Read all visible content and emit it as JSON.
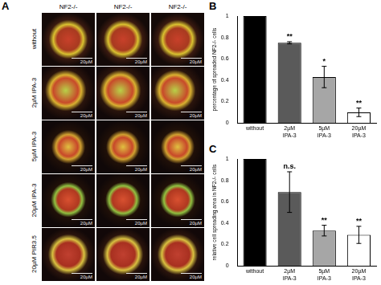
{
  "figure": {
    "panel_labels": [
      "A",
      "B",
      "C"
    ],
    "images": {
      "column_headers": [
        "NF2-/-",
        "NF2-/-",
        "NF2-/-"
      ],
      "row_labels": [
        "without",
        "2µM IPA-3",
        "5µM IPA-3",
        "20µM IPA-3",
        "20µM PIR3.5"
      ],
      "scale_bar_label": "20µM"
    }
  },
  "chart_data": [
    {
      "type": "bar",
      "panel": "B",
      "y_label": "percentage of spreaded NF2-/- cells",
      "categories": [
        "without",
        "2µM IPA-3",
        "5µM IPA-3",
        "20µM IPA-3"
      ],
      "values": [
        1,
        0.75,
        0.43,
        0.1
      ],
      "errors": [
        0,
        0.01,
        0.1,
        0.04
      ],
      "colors": [
        "#000000",
        "#5a5a5a",
        "#a6a6a6",
        "#ffffff"
      ],
      "annotations": [
        {
          "category": "2µM IPA-3",
          "text": "**"
        },
        {
          "category": "5µM IPA-3",
          "text": "*"
        },
        {
          "category": "20µM IPA-3",
          "text": "**"
        }
      ],
      "ylim": [
        0,
        1
      ],
      "yticks": [
        0,
        0.2,
        0.4,
        0.6,
        0.8,
        1
      ],
      "grid": false
    },
    {
      "type": "bar",
      "panel": "C",
      "y_label": "relative cell spreading area in NF2-/- cells",
      "categories": [
        "without",
        "2µM IPA-3",
        "5µM IPA-3",
        "20µM IPA-3"
      ],
      "values": [
        1,
        0.69,
        0.33,
        0.29
      ],
      "errors": [
        0,
        0.19,
        0.05,
        0.08
      ],
      "colors": [
        "#000000",
        "#5a5a5a",
        "#a6a6a6",
        "#ffffff"
      ],
      "annotations": [
        {
          "category": "2µM IPA-3",
          "text": "n.s."
        },
        {
          "category": "5µM IPA-3",
          "text": "**"
        },
        {
          "category": "20µM IPA-3",
          "text": "**"
        }
      ],
      "ylim": [
        0,
        1
      ],
      "yticks": [
        0,
        0.2,
        0.4,
        0.6,
        0.8,
        1
      ],
      "grid": false
    }
  ]
}
